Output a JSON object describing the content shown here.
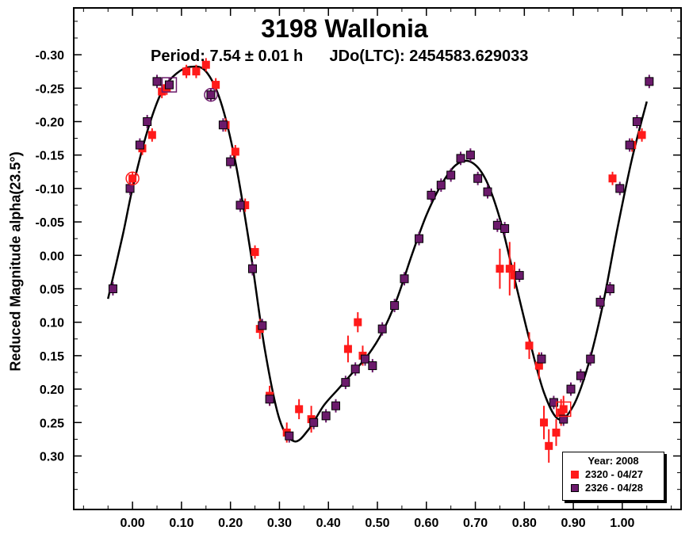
{
  "chart_data": {
    "type": "scatter",
    "title": "3198 Wallonia",
    "subtitle_period": "Period: 7.54 ± 0.01 h",
    "subtitle_epoch": "JDo(LTC): 2454583.629033",
    "xlabel": "",
    "ylabel": "Reduced Magnitude alpha(23.5°)",
    "xlim": [
      -0.12,
      1.12
    ],
    "ylim": [
      -0.37,
      0.38
    ],
    "y_inverted": true,
    "x_ticks": [
      "0.00",
      "0.10",
      "0.20",
      "0.30",
      "0.40",
      "0.50",
      "0.60",
      "0.70",
      "0.80",
      "0.90",
      "1.00"
    ],
    "x_tick_values": [
      0,
      0.1,
      0.2,
      0.3,
      0.4,
      0.5,
      0.6,
      0.7,
      0.8,
      0.9,
      1.0
    ],
    "y_ticks": [
      "-0.30",
      "-0.25",
      "-0.20",
      "-0.15",
      "-0.10",
      "-0.05",
      "0.00",
      "0.05",
      "0.10",
      "0.15",
      "0.20",
      "0.25",
      "0.30"
    ],
    "y_tick_values": [
      -0.3,
      -0.25,
      -0.2,
      -0.15,
      -0.1,
      -0.05,
      0.0,
      0.05,
      0.1,
      0.15,
      0.2,
      0.25,
      0.3
    ],
    "legend": {
      "title": "Year: 2008",
      "position": "bottom-right",
      "entries": [
        "2320 - 04/27",
        "2326 - 04/28"
      ]
    },
    "colors": {
      "series1": "#ff1a1a",
      "series2": "#6b1a6b",
      "fit": "#000000"
    },
    "series": [
      {
        "name": "2320 - 04/27",
        "x": [
          0.0,
          0.02,
          0.04,
          0.06,
          0.07,
          0.11,
          0.13,
          0.15,
          0.17,
          0.19,
          0.21,
          0.23,
          0.25,
          0.26,
          0.28,
          0.315,
          0.34,
          0.365,
          0.44,
          0.46,
          0.47,
          0.75,
          0.77,
          0.78,
          0.81,
          0.83,
          0.84,
          0.85,
          0.865,
          0.875,
          0.88,
          0.98,
          1.02,
          1.04
        ],
        "y": [
          -0.115,
          -0.16,
          -0.18,
          -0.245,
          -0.25,
          -0.275,
          -0.275,
          -0.285,
          -0.255,
          -0.195,
          -0.155,
          -0.075,
          -0.005,
          0.11,
          0.21,
          0.265,
          0.23,
          0.245,
          0.14,
          0.1,
          0.15,
          0.02,
          0.02,
          0.03,
          0.135,
          0.165,
          0.25,
          0.285,
          0.265,
          0.235,
          0.23,
          -0.115,
          -0.165,
          -0.18
        ],
        "err": [
          0.01,
          0.01,
          0.01,
          0.01,
          0.01,
          0.01,
          0.01,
          0.01,
          0.01,
          0.01,
          0.01,
          0.01,
          0.01,
          0.015,
          0.015,
          0.015,
          0.015,
          0.02,
          0.02,
          0.015,
          0.015,
          0.03,
          0.04,
          0.02,
          0.02,
          0.02,
          0.025,
          0.025,
          0.02,
          0.02,
          0.02,
          0.01,
          0.01,
          0.01
        ]
      },
      {
        "name": "2326 - 04/28",
        "x": [
          -0.04,
          -0.005,
          0.015,
          0.03,
          0.05,
          0.075,
          0.16,
          0.185,
          0.2,
          0.22,
          0.245,
          0.265,
          0.28,
          0.32,
          0.37,
          0.395,
          0.415,
          0.435,
          0.455,
          0.475,
          0.49,
          0.51,
          0.535,
          0.555,
          0.585,
          0.61,
          0.63,
          0.65,
          0.67,
          0.69,
          0.705,
          0.725,
          0.745,
          0.76,
          0.79,
          0.835,
          0.86,
          0.88,
          0.895,
          0.915,
          0.935,
          0.955,
          0.975,
          0.995,
          1.015,
          1.03,
          1.055
        ],
        "y": [
          0.05,
          -0.1,
          -0.165,
          -0.2,
          -0.26,
          -0.255,
          -0.24,
          -0.195,
          -0.14,
          -0.075,
          0.02,
          0.105,
          0.215,
          0.27,
          0.25,
          0.24,
          0.225,
          0.19,
          0.17,
          0.155,
          0.165,
          0.11,
          0.075,
          0.035,
          -0.025,
          -0.09,
          -0.105,
          -0.12,
          -0.145,
          -0.15,
          -0.115,
          -0.095,
          -0.045,
          -0.04,
          0.03,
          0.155,
          0.22,
          0.245,
          0.2,
          0.18,
          0.155,
          0.07,
          0.05,
          -0.1,
          -0.165,
          -0.2,
          -0.26
        ],
        "err": [
          0.01,
          0.01,
          0.01,
          0.01,
          0.01,
          0.01,
          0.01,
          0.01,
          0.01,
          0.01,
          0.01,
          0.01,
          0.01,
          0.01,
          0.01,
          0.01,
          0.01,
          0.01,
          0.01,
          0.01,
          0.01,
          0.01,
          0.01,
          0.01,
          0.01,
          0.01,
          0.01,
          0.01,
          0.01,
          0.01,
          0.01,
          0.01,
          0.01,
          0.01,
          0.01,
          0.01,
          0.01,
          0.01,
          0.01,
          0.01,
          0.01,
          0.01,
          0.01,
          0.01,
          0.01,
          0.01,
          0.01
        ]
      }
    ],
    "fit_curve": {
      "x": [
        -0.05,
        -0.02,
        0.0,
        0.03,
        0.06,
        0.09,
        0.12,
        0.15,
        0.18,
        0.21,
        0.24,
        0.27,
        0.3,
        0.33,
        0.36,
        0.39,
        0.42,
        0.45,
        0.48,
        0.51,
        0.54,
        0.57,
        0.6,
        0.63,
        0.66,
        0.69,
        0.72,
        0.75,
        0.78,
        0.81,
        0.84,
        0.87,
        0.9,
        0.93,
        0.96,
        0.99,
        1.02,
        1.05
      ],
      "y": [
        0.065,
        -0.03,
        -0.1,
        -0.185,
        -0.245,
        -0.272,
        -0.282,
        -0.275,
        -0.23,
        -0.14,
        -0.01,
        0.14,
        0.245,
        0.278,
        0.26,
        0.225,
        0.2,
        0.175,
        0.15,
        0.115,
        0.065,
        0.0,
        -0.06,
        -0.105,
        -0.135,
        -0.14,
        -0.115,
        -0.055,
        0.035,
        0.125,
        0.205,
        0.245,
        0.225,
        0.165,
        0.075,
        -0.04,
        -0.145,
        -0.23
      ]
    },
    "highlighted_points": [
      {
        "series": "2320 - 04/27",
        "x": 0.0,
        "y": -0.115,
        "marker": "circle"
      },
      {
        "series": "2326 - 04/28",
        "x": 0.16,
        "y": -0.24,
        "marker": "circle"
      },
      {
        "series": "2326 - 04/28",
        "x": 0.075,
        "y": -0.255,
        "marker": "square"
      },
      {
        "series": "2320 - 04/27",
        "x": 0.88,
        "y": 0.23,
        "marker": "square"
      }
    ]
  }
}
